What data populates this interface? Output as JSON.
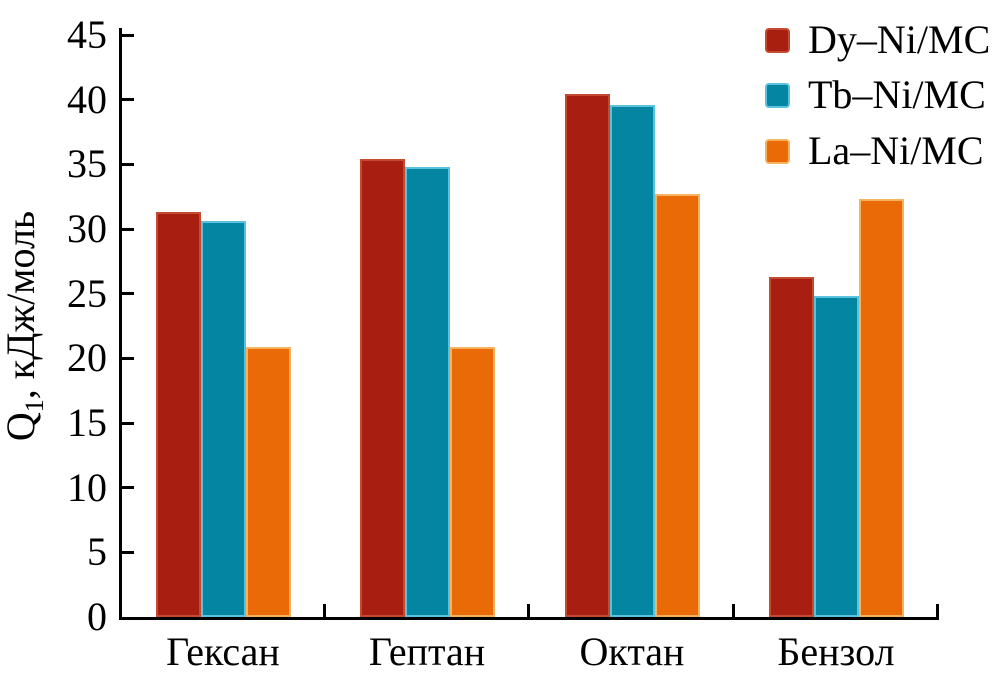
{
  "chart_data": {
    "type": "bar",
    "categories": [
      "Гексан",
      "Гептан",
      "Октан",
      "Бензол"
    ],
    "series": [
      {
        "name": "Dy–Ni/MC",
        "color": "#a81f11",
        "edge_color": "#c44b31",
        "values": [
          31.3,
          35.4,
          40.4,
          26.3
        ]
      },
      {
        "name": "Tb–Ni/MC",
        "color": "#0485a1",
        "edge_color": "#5ac2dc",
        "values": [
          30.6,
          34.8,
          39.6,
          24.8
        ]
      },
      {
        "name": "La–Ni/MC",
        "color": "#ea6a08",
        "edge_color": "#f7b261",
        "values": [
          20.9,
          20.9,
          32.7,
          32.3
        ]
      }
    ],
    "ylabel": {
      "symbol": "Q",
      "subscript": "1",
      "unit": ", кДж/моль"
    },
    "xlabel": "",
    "title": "",
    "ylim": [
      0,
      45
    ],
    "yticks": [
      0,
      5,
      10,
      15,
      20,
      25,
      30,
      35,
      40,
      45
    ],
    "grid": false,
    "legend_position": "top-right"
  },
  "colors": {
    "axis": "#000000",
    "background": "#ffffff",
    "text": "#000000"
  }
}
